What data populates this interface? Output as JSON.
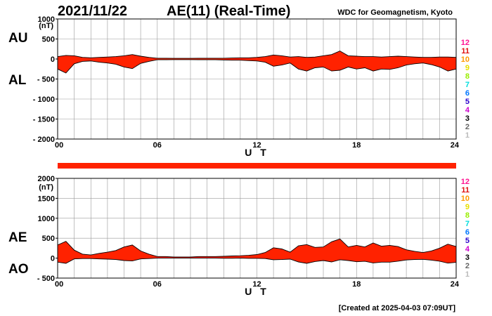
{
  "header": {
    "date": "2021/11/22",
    "title": "AE(11) (Real-Time)",
    "source": "WDC for Geomagnetism, Kyoto"
  },
  "footer": {
    "created": "[Created at 2025-04-03 07:09UT]"
  },
  "colors": {
    "fill": "#ff2200",
    "grid": "#999999",
    "key": [
      "#ff1493",
      "#e01010",
      "#ff9900",
      "#e8e000",
      "#99ee00",
      "#00dddd",
      "#0077ff",
      "#2a00cc",
      "#cc00cc",
      "#000000",
      "#666666",
      "#bbbbbb"
    ]
  },
  "station_key": [
    "12",
    "11",
    "10",
    "9",
    "8",
    "7",
    "6",
    "5",
    "4",
    "3",
    "2",
    "1"
  ],
  "chart_data": [
    {
      "type": "area",
      "name": "AU/AL",
      "unit": "(nT)",
      "ylim": [
        -2000,
        1000
      ],
      "yticks": [
        "1000",
        "500",
        "0",
        "- 500",
        "- 1000",
        "- 1500",
        "- 2000"
      ],
      "xlim": [
        0,
        24
      ],
      "xticks": [
        "00",
        "06",
        "12",
        "18",
        "24"
      ],
      "xlabel": "U T",
      "labels": [
        "AU",
        "AL"
      ],
      "grid": true,
      "x": [
        0,
        0.5,
        1,
        1.5,
        2,
        2.5,
        3,
        3.5,
        4,
        4.5,
        5,
        5.5,
        6,
        6.5,
        7,
        7.5,
        8,
        8.5,
        9,
        9.5,
        10,
        10.5,
        11,
        11.5,
        12,
        12.5,
        13,
        13.5,
        14,
        14.5,
        15,
        15.5,
        16,
        16.5,
        17,
        17.5,
        18,
        18.5,
        19,
        19.5,
        20,
        20.5,
        21,
        21.5,
        22,
        22.5,
        23,
        23.5,
        24
      ],
      "series": [
        {
          "name": "AU",
          "values": [
            60,
            90,
            80,
            40,
            30,
            40,
            50,
            60,
            80,
            110,
            70,
            40,
            20,
            20,
            15,
            15,
            15,
            20,
            20,
            20,
            20,
            25,
            30,
            30,
            40,
            60,
            100,
            80,
            50,
            60,
            40,
            50,
            80,
            110,
            200,
            80,
            70,
            60,
            60,
            50,
            60,
            70,
            60,
            50,
            40,
            40,
            50,
            50,
            40
          ]
        },
        {
          "name": "AL",
          "values": [
            -250,
            -350,
            -120,
            -60,
            -50,
            -80,
            -100,
            -130,
            -200,
            -240,
            -110,
            -60,
            -20,
            -20,
            -15,
            -15,
            -15,
            -20,
            -20,
            -20,
            -25,
            -30,
            -30,
            -40,
            -50,
            -80,
            -180,
            -150,
            -100,
            -250,
            -300,
            -220,
            -200,
            -300,
            -280,
            -200,
            -250,
            -220,
            -300,
            -250,
            -260,
            -220,
            -150,
            -120,
            -100,
            -140,
            -200,
            -300,
            -250
          ]
        }
      ]
    },
    {
      "type": "area",
      "name": "AE/AO",
      "unit": "(nT)",
      "ylim": [
        -500,
        2000
      ],
      "yticks": [
        "2000",
        "1500",
        "1000",
        "500",
        "0",
        "- 500"
      ],
      "xlim": [
        0,
        24
      ],
      "xticks": [
        "00",
        "06",
        "12",
        "18",
        "24"
      ],
      "xlabel": "U T",
      "labels": [
        "AE",
        "AO"
      ],
      "grid": true,
      "x": [
        0,
        0.5,
        1,
        1.5,
        2,
        2.5,
        3,
        3.5,
        4,
        4.5,
        5,
        5.5,
        6,
        6.5,
        7,
        7.5,
        8,
        8.5,
        9,
        9.5,
        10,
        10.5,
        11,
        11.5,
        12,
        12.5,
        13,
        13.5,
        14,
        14.5,
        15,
        15.5,
        16,
        16.5,
        17,
        17.5,
        18,
        18.5,
        19,
        19.5,
        20,
        20.5,
        21,
        21.5,
        22,
        22.5,
        23,
        23.5,
        24
      ],
      "series": [
        {
          "name": "AE",
          "values": [
            330,
            420,
            200,
            100,
            80,
            120,
            150,
            190,
            280,
            330,
            180,
            100,
            40,
            40,
            30,
            30,
            30,
            40,
            40,
            40,
            45,
            55,
            60,
            70,
            90,
            140,
            260,
            230,
            150,
            310,
            340,
            270,
            280,
            410,
            480,
            280,
            320,
            280,
            380,
            300,
            320,
            290,
            210,
            170,
            140,
            180,
            250,
            350,
            290
          ]
        },
        {
          "name": "AO",
          "values": [
            -100,
            -130,
            -20,
            -10,
            -10,
            -20,
            -25,
            -35,
            -60,
            -70,
            -20,
            -10,
            0,
            0,
            0,
            0,
            0,
            0,
            0,
            0,
            -3,
            -3,
            0,
            -5,
            -5,
            -10,
            -40,
            -35,
            -25,
            -95,
            -130,
            -85,
            -60,
            -95,
            -40,
            -60,
            -90,
            -80,
            -120,
            -100,
            -100,
            -75,
            -45,
            -35,
            -30,
            -50,
            -75,
            -125,
            -105
          ]
        }
      ]
    }
  ]
}
